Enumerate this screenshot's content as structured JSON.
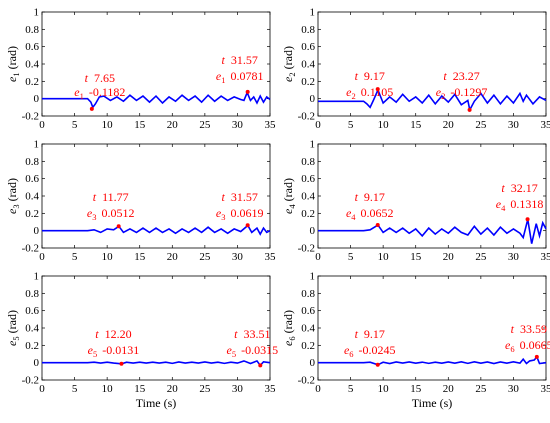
{
  "chart_data": {
    "type": "line",
    "shared": {
      "xlabel": "Time (s)",
      "xlim": [
        0,
        35
      ],
      "xticks": [
        "0",
        "5",
        "10",
        "15",
        "20",
        "25",
        "30",
        "35"
      ],
      "ylim": [
        -0.2,
        1
      ],
      "yticks": [
        "-0.2",
        "0",
        "0.2",
        "0.4",
        "0.6",
        "0.8",
        "1"
      ],
      "ylabel_unit": "(rad)",
      "line_color": "#0000ff",
      "marker_color": "#ff0000"
    },
    "panels": [
      {
        "ylabel": "e",
        "sub": "1",
        "series": [
          {
            "x": [
              0,
              7,
              7.5,
              7.8,
              8.2,
              8.8,
              9.5,
              10.5,
              11.5,
              12.5,
              13.5,
              14.5,
              15.5,
              16.5,
              17.5,
              18.5,
              19.5,
              20.5,
              21.5,
              22.5,
              23.5,
              24.5,
              25.5,
              26.5,
              27.5,
              28.5,
              29.5,
              30.5,
              31,
              31.5,
              32,
              32.5,
              33,
              33.5,
              34,
              34.5,
              35
            ],
            "y": [
              0,
              0,
              -0.04,
              -0.1,
              -0.06,
              0.02,
              0.03,
              -0.02,
              0.02,
              -0.03,
              0.04,
              -0.02,
              0.03,
              -0.04,
              0.03,
              -0.05,
              0.02,
              -0.03,
              0.04,
              -0.02,
              0.03,
              -0.04,
              0.04,
              -0.03,
              0.03,
              -0.02,
              0.02,
              -0.01,
              -0.02,
              0.07,
              -0.02,
              0.02,
              -0.05,
              0.03,
              -0.04,
              0.02,
              -0.01
            ]
          }
        ],
        "annotations": [
          {
            "t": "7.65",
            "e": "-0.1182"
          },
          {
            "t": "31.57",
            "e": "0.0781"
          }
        ],
        "markers": [
          {
            "x": 7.65,
            "y": -0.1182
          },
          {
            "x": 31.57,
            "y": 0.0781
          }
        ]
      },
      {
        "ylabel": "e",
        "sub": "2",
        "series": [
          {
            "x": [
              0,
              7,
              7.5,
              8,
              8.5,
              9.2,
              10,
              11,
              12,
              13,
              14,
              15,
              16,
              17,
              18,
              19,
              20,
              21,
              22,
              23,
              23.3,
              24,
              25,
              26,
              27,
              28,
              29,
              30,
              31,
              31.5,
              32,
              33,
              34,
              35
            ],
            "y": [
              -0.03,
              -0.03,
              -0.06,
              -0.1,
              -0.02,
              0.1,
              -0.05,
              0.02,
              -0.04,
              0.05,
              -0.03,
              0.02,
              -0.05,
              0.04,
              -0.06,
              0.03,
              -0.04,
              0.05,
              -0.07,
              -0.02,
              -0.13,
              -0.03,
              0.06,
              -0.05,
              0.04,
              -0.06,
              0.03,
              -0.05,
              0.06,
              -0.03,
              0.04,
              -0.06,
              0.02,
              -0.02
            ]
          }
        ],
        "annotations": [
          {
            "t": "9.17",
            "e": "0.1105"
          },
          {
            "t": "23.27",
            "e": "-0.1297"
          }
        ],
        "markers": [
          {
            "x": 9.17,
            "y": 0.1105
          },
          {
            "x": 23.27,
            "y": -0.1297
          }
        ]
      },
      {
        "ylabel": "e",
        "sub": "3",
        "series": [
          {
            "x": [
              0,
              7,
              8,
              9,
              10,
              11,
              11.8,
              12.5,
              13.5,
              14.5,
              15.5,
              16.5,
              17.5,
              18.5,
              19.5,
              20.5,
              21.5,
              22.5,
              23.5,
              24.5,
              25.5,
              26.5,
              27.5,
              28.5,
              29.5,
              30.5,
              31.6,
              32.2,
              33,
              33.5,
              34,
              34.5,
              35
            ],
            "y": [
              0,
              0,
              0.01,
              -0.02,
              0.02,
              0.01,
              0.05,
              -0.02,
              0.02,
              -0.02,
              0.03,
              -0.02,
              0.03,
              -0.02,
              0.02,
              -0.03,
              0.02,
              -0.02,
              0.03,
              -0.02,
              0.04,
              -0.02,
              0.02,
              -0.03,
              0.02,
              -0.01,
              0.06,
              -0.02,
              0.03,
              -0.04,
              0.03,
              -0.02,
              0
            ]
          }
        ],
        "annotations": [
          {
            "t": "11.77",
            "e": "0.0512"
          },
          {
            "t": "31.57",
            "e": "0.0619"
          }
        ],
        "markers": [
          {
            "x": 11.77,
            "y": 0.0512
          },
          {
            "x": 31.57,
            "y": 0.0619
          }
        ]
      },
      {
        "ylabel": "e",
        "sub": "4",
        "series": [
          {
            "x": [
              0,
              7,
              8,
              9.2,
              10,
              11,
              12,
              13,
              14,
              15,
              16,
              17,
              18,
              19,
              20,
              21,
              22,
              23,
              24,
              25,
              26,
              27,
              28,
              29,
              30,
              31,
              31.5,
              32.2,
              32.8,
              33.5,
              34,
              34.5,
              35
            ],
            "y": [
              0,
              0,
              0.01,
              0.065,
              -0.02,
              0.03,
              -0.02,
              0.03,
              -0.03,
              0.02,
              -0.06,
              0.03,
              -0.04,
              0.02,
              -0.03,
              0.04,
              -0.02,
              -0.05,
              0.05,
              -0.04,
              0.03,
              -0.05,
              0.04,
              -0.03,
              0.02,
              -0.03,
              -0.08,
              0.13,
              -0.15,
              0.08,
              -0.06,
              0.09,
              0.02
            ]
          }
        ],
        "annotations": [
          {
            "t": "9.17",
            "e": "0.0652"
          },
          {
            "t": "32.17",
            "e": "0.1318"
          }
        ],
        "markers": [
          {
            "x": 9.17,
            "y": 0.0652
          },
          {
            "x": 32.17,
            "y": 0.1318
          }
        ]
      },
      {
        "ylabel": "e",
        "sub": "5",
        "series": [
          {
            "x": [
              0,
              7,
              8,
              9,
              10,
              11,
              12.2,
              13,
              14,
              15,
              16,
              17,
              18,
              19,
              20,
              21,
              22,
              23,
              24,
              25,
              26,
              27,
              28,
              29,
              30,
              31,
              32,
              33,
              33.5,
              34,
              35
            ],
            "y": [
              0,
              0,
              0.005,
              -0.005,
              0.005,
              -0.005,
              -0.013,
              0.005,
              -0.005,
              0.005,
              -0.005,
              0.005,
              -0.005,
              0.005,
              -0.008,
              0.008,
              -0.005,
              0.005,
              -0.005,
              0.008,
              -0.005,
              0.005,
              -0.008,
              0.005,
              -0.005,
              0.02,
              -0.01,
              0.02,
              -0.0315,
              0.01,
              0
            ]
          }
        ],
        "annotations": [
          {
            "t": "12.20",
            "e": "-0.0131"
          },
          {
            "t": "33.51",
            "e": "-0.0315"
          }
        ],
        "markers": [
          {
            "x": 12.2,
            "y": -0.0131
          },
          {
            "x": 33.51,
            "y": -0.0315
          }
        ]
      },
      {
        "ylabel": "e",
        "sub": "6",
        "series": [
          {
            "x": [
              0,
              7,
              8,
              9.2,
              10,
              11,
              12,
              13,
              14,
              15,
              16,
              17,
              18,
              19,
              20,
              21,
              22,
              23,
              24,
              25,
              26,
              27,
              28,
              29,
              30,
              31,
              31.5,
              32,
              32.5,
              33.2,
              33.6,
              34,
              35
            ],
            "y": [
              0,
              0,
              0.005,
              -0.0245,
              0.005,
              -0.01,
              0.008,
              -0.005,
              0.008,
              -0.006,
              0.006,
              -0.008,
              0.005,
              -0.006,
              0.008,
              -0.006,
              0.01,
              -0.008,
              0.01,
              -0.006,
              0.008,
              -0.01,
              0.008,
              -0.006,
              0.01,
              -0.005,
              0.04,
              -0.01,
              0.02,
              0.03,
              0.0665,
              -0.01,
              0
            ]
          }
        ],
        "annotations": [
          {
            "t": "9.17",
            "e": "-0.0245"
          },
          {
            "t": "33.59",
            "e": "0.0665"
          }
        ],
        "markers": [
          {
            "x": 9.17,
            "y": -0.0245
          },
          {
            "x": 33.59,
            "y": 0.0665
          }
        ]
      }
    ]
  }
}
